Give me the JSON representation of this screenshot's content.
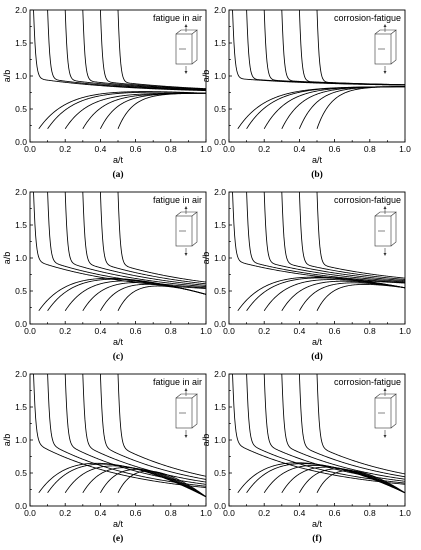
{
  "chart_data": [
    {
      "type": "line",
      "title": "fatigue in air",
      "panel_label": "(a)",
      "xlabel": "a/t",
      "ylabel": "a/b",
      "xlim": [
        0.0,
        1.0
      ],
      "ylim": [
        0.0,
        2.0
      ],
      "xticks": [
        "0.0",
        "0.2",
        "0.4",
        "0.6",
        "0.8",
        "1.0"
      ],
      "yticks": [
        "0.0",
        "0.5",
        "1.0",
        "1.5",
        "2.0"
      ],
      "icon": "bending-arrows-icon",
      "convergence_value": 0.74,
      "series_start": [
        {
          "x": 0.02,
          "y": 2.0
        },
        {
          "x": 0.1,
          "y": 2.0
        },
        {
          "x": 0.2,
          "y": 2.0
        },
        {
          "x": 0.3,
          "y": 2.0
        },
        {
          "x": 0.4,
          "y": 2.0
        },
        {
          "x": 0.5,
          "y": 2.0
        },
        {
          "x": 0.05,
          "y": 0.2
        },
        {
          "x": 0.1,
          "y": 0.2
        },
        {
          "x": 0.2,
          "y": 0.2
        },
        {
          "x": 0.3,
          "y": 0.2
        },
        {
          "x": 0.4,
          "y": 0.2
        },
        {
          "x": 0.5,
          "y": 0.2
        }
      ]
    },
    {
      "type": "line",
      "title": "corrosion-fatigue",
      "panel_label": "(b)",
      "xlabel": "a/t",
      "ylabel": "a/b",
      "xlim": [
        0.0,
        1.0
      ],
      "ylim": [
        0.0,
        2.0
      ],
      "xticks": [
        "0.0",
        "0.2",
        "0.4",
        "0.6",
        "0.8",
        "1.0"
      ],
      "yticks": [
        "0.0",
        "0.5",
        "1.0",
        "1.5",
        "2.0"
      ],
      "icon": "bending-arrows-icon",
      "convergence_value": 0.84,
      "series_start": [
        {
          "x": 0.02,
          "y": 2.0
        },
        {
          "x": 0.1,
          "y": 2.0
        },
        {
          "x": 0.2,
          "y": 2.0
        },
        {
          "x": 0.3,
          "y": 2.0
        },
        {
          "x": 0.4,
          "y": 2.0
        },
        {
          "x": 0.5,
          "y": 2.0
        },
        {
          "x": 0.05,
          "y": 0.2
        },
        {
          "x": 0.1,
          "y": 0.2
        },
        {
          "x": 0.2,
          "y": 0.2
        },
        {
          "x": 0.3,
          "y": 0.2
        },
        {
          "x": 0.4,
          "y": 0.2
        },
        {
          "x": 0.5,
          "y": 0.2
        }
      ]
    },
    {
      "type": "line",
      "title": "fatigue in air",
      "panel_label": "(c)",
      "xlabel": "a/t",
      "ylabel": "a/b",
      "xlim": [
        0.0,
        1.0
      ],
      "ylim": [
        0.0,
        2.0
      ],
      "xticks": [
        "0.0",
        "0.2",
        "0.4",
        "0.6",
        "0.8",
        "1.0"
      ],
      "yticks": [
        "0.0",
        "0.5",
        "1.0",
        "1.5",
        "2.0"
      ],
      "icon": "tension-bending-arrows-icon",
      "convergence_value": 0.45,
      "series_start": [
        {
          "x": 0.02,
          "y": 2.0
        },
        {
          "x": 0.1,
          "y": 2.0
        },
        {
          "x": 0.2,
          "y": 2.0
        },
        {
          "x": 0.3,
          "y": 2.0
        },
        {
          "x": 0.4,
          "y": 2.0
        },
        {
          "x": 0.5,
          "y": 2.0
        },
        {
          "x": 0.05,
          "y": 0.2
        },
        {
          "x": 0.1,
          "y": 0.2
        },
        {
          "x": 0.2,
          "y": 0.2
        },
        {
          "x": 0.3,
          "y": 0.2
        },
        {
          "x": 0.4,
          "y": 0.2
        },
        {
          "x": 0.5,
          "y": 0.2
        }
      ]
    },
    {
      "type": "line",
      "title": "corrosion-fatigue",
      "panel_label": "(d)",
      "xlabel": "a/t",
      "ylabel": "a/b",
      "xlim": [
        0.0,
        1.0
      ],
      "ylim": [
        0.0,
        2.0
      ],
      "xticks": [
        "0.0",
        "0.2",
        "0.4",
        "0.6",
        "0.8",
        "1.0"
      ],
      "yticks": [
        "0.0",
        "0.5",
        "1.0",
        "1.5",
        "2.0"
      ],
      "icon": "tension-bending-arrows-icon",
      "convergence_value": 0.55,
      "series_start": [
        {
          "x": 0.02,
          "y": 2.0
        },
        {
          "x": 0.1,
          "y": 2.0
        },
        {
          "x": 0.2,
          "y": 2.0
        },
        {
          "x": 0.3,
          "y": 2.0
        },
        {
          "x": 0.4,
          "y": 2.0
        },
        {
          "x": 0.5,
          "y": 2.0
        },
        {
          "x": 0.05,
          "y": 0.2
        },
        {
          "x": 0.1,
          "y": 0.2
        },
        {
          "x": 0.2,
          "y": 0.2
        },
        {
          "x": 0.3,
          "y": 0.2
        },
        {
          "x": 0.4,
          "y": 0.2
        },
        {
          "x": 0.5,
          "y": 0.2
        }
      ]
    },
    {
      "type": "line",
      "title": "fatigue in air",
      "panel_label": "(e)",
      "xlabel": "a/t",
      "ylabel": "a/b",
      "xlim": [
        0.0,
        1.0
      ],
      "ylim": [
        0.0,
        2.0
      ],
      "xticks": [
        "0.0",
        "0.2",
        "0.4",
        "0.6",
        "0.8",
        "1.0"
      ],
      "yticks": [
        "0.0",
        "0.5",
        "1.0",
        "1.5",
        "2.0"
      ],
      "icon": "tension-arrows-icon",
      "convergence_value": 0.14,
      "series_start": [
        {
          "x": 0.02,
          "y": 2.0
        },
        {
          "x": 0.1,
          "y": 2.0
        },
        {
          "x": 0.2,
          "y": 2.0
        },
        {
          "x": 0.3,
          "y": 2.0
        },
        {
          "x": 0.4,
          "y": 2.0
        },
        {
          "x": 0.5,
          "y": 2.0
        },
        {
          "x": 0.05,
          "y": 0.2
        },
        {
          "x": 0.1,
          "y": 0.2
        },
        {
          "x": 0.2,
          "y": 0.2
        },
        {
          "x": 0.3,
          "y": 0.2
        },
        {
          "x": 0.4,
          "y": 0.2
        },
        {
          "x": 0.5,
          "y": 0.2
        }
      ]
    },
    {
      "type": "line",
      "title": "corrosion-fatigue",
      "panel_label": "(f)",
      "xlabel": "a/t",
      "ylabel": "a/b",
      "xlim": [
        0.0,
        1.0
      ],
      "ylim": [
        0.0,
        2.0
      ],
      "xticks": [
        "0.0",
        "0.2",
        "0.4",
        "0.6",
        "0.8",
        "1.0"
      ],
      "yticks": [
        "0.0",
        "0.5",
        "1.0",
        "1.5",
        "2.0"
      ],
      "icon": "tension-arrows-icon",
      "convergence_value": 0.2,
      "series_start": [
        {
          "x": 0.02,
          "y": 2.0
        },
        {
          "x": 0.1,
          "y": 2.0
        },
        {
          "x": 0.2,
          "y": 2.0
        },
        {
          "x": 0.3,
          "y": 2.0
        },
        {
          "x": 0.4,
          "y": 2.0
        },
        {
          "x": 0.5,
          "y": 2.0
        },
        {
          "x": 0.05,
          "y": 0.2
        },
        {
          "x": 0.1,
          "y": 0.2
        },
        {
          "x": 0.2,
          "y": 0.2
        },
        {
          "x": 0.3,
          "y": 0.2
        },
        {
          "x": 0.4,
          "y": 0.2
        },
        {
          "x": 0.5,
          "y": 0.2
        }
      ]
    }
  ]
}
